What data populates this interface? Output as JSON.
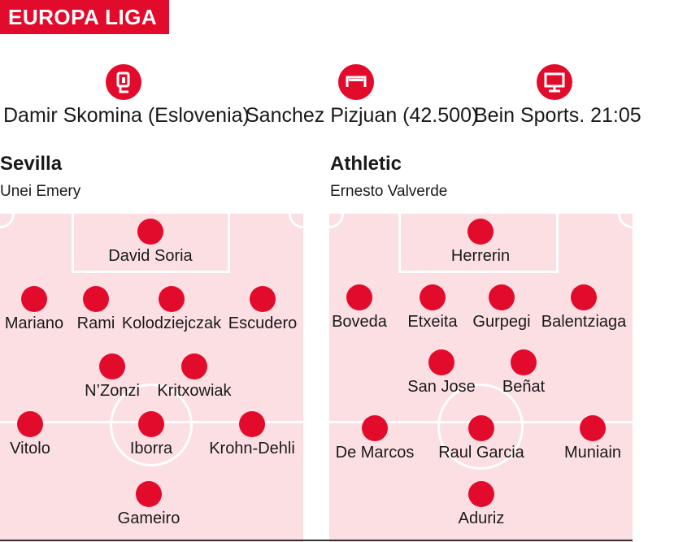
{
  "competition": "EUROPA LIGA",
  "match_info": {
    "referee": "Damir Skomina (Eslovenia)",
    "stadium": "Sanchez Pizjuan (42.500)",
    "tv": "Bein Sports. 21:05"
  },
  "icons": [
    "whistle-card-icon",
    "goal-icon",
    "tv-icon"
  ],
  "colors": {
    "accent": "#e30b2c",
    "pitch": "#fcdfe3"
  },
  "home": {
    "name": "Sevilla",
    "coach": "Unei Emery",
    "players": [
      "David Soria",
      "Mariano",
      "Rami",
      "Kolodziejczak",
      "Escudero",
      "N’Zonzi",
      "Kritxowiak",
      "Vitolo",
      "Iborra",
      "Krohn-Dehli",
      "Gameiro"
    ]
  },
  "away": {
    "name": "Athletic",
    "coach": "Ernesto Valverde",
    "players": [
      "Herrerin",
      "Boveda",
      "Etxeita",
      "Gurpegi",
      "Balentziaga",
      "San Jose",
      "Beñat",
      "De Marcos",
      "Raul Garcia",
      "Muniain",
      "Aduriz"
    ]
  }
}
